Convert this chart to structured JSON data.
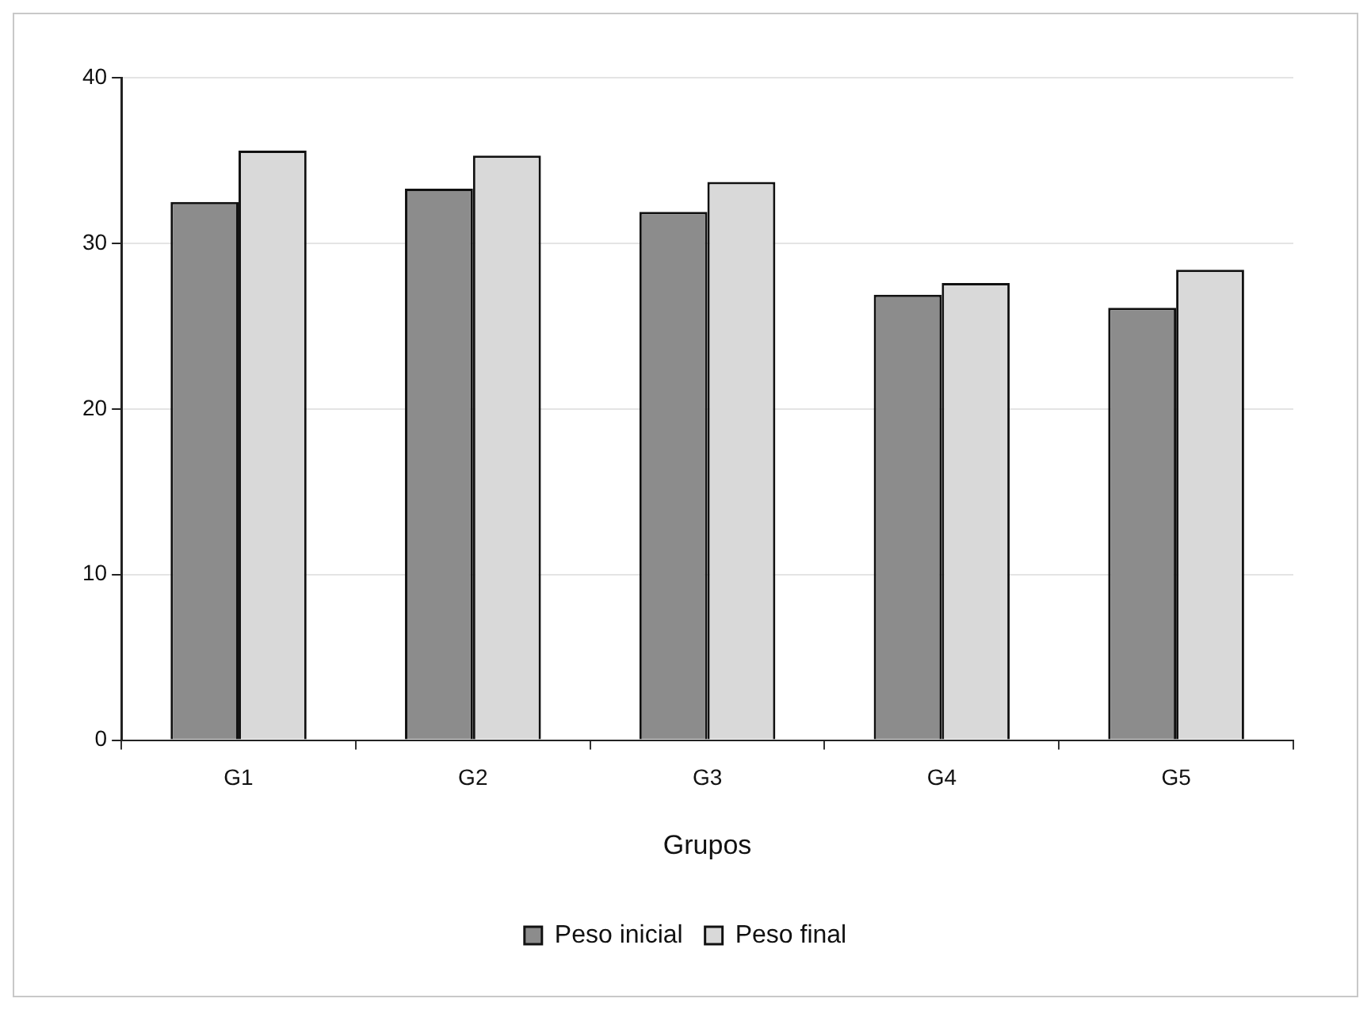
{
  "chart_data": {
    "type": "bar",
    "xlabel": "Grupos",
    "categories": [
      "G1",
      "G2",
      "G3",
      "G4",
      "G5"
    ],
    "series": [
      {
        "name": "Peso inicial",
        "color": "#8c8c8c",
        "values": [
          32.5,
          33.3,
          31.9,
          26.9,
          26.1
        ]
      },
      {
        "name": "Peso final",
        "color": "#d9d9d9",
        "values": [
          35.6,
          35.3,
          33.7,
          27.6,
          28.4
        ]
      }
    ],
    "ylim": [
      0,
      40
    ],
    "yticks": [
      0,
      10,
      20,
      30,
      40
    ],
    "grid": "y",
    "legend": "bottom"
  }
}
